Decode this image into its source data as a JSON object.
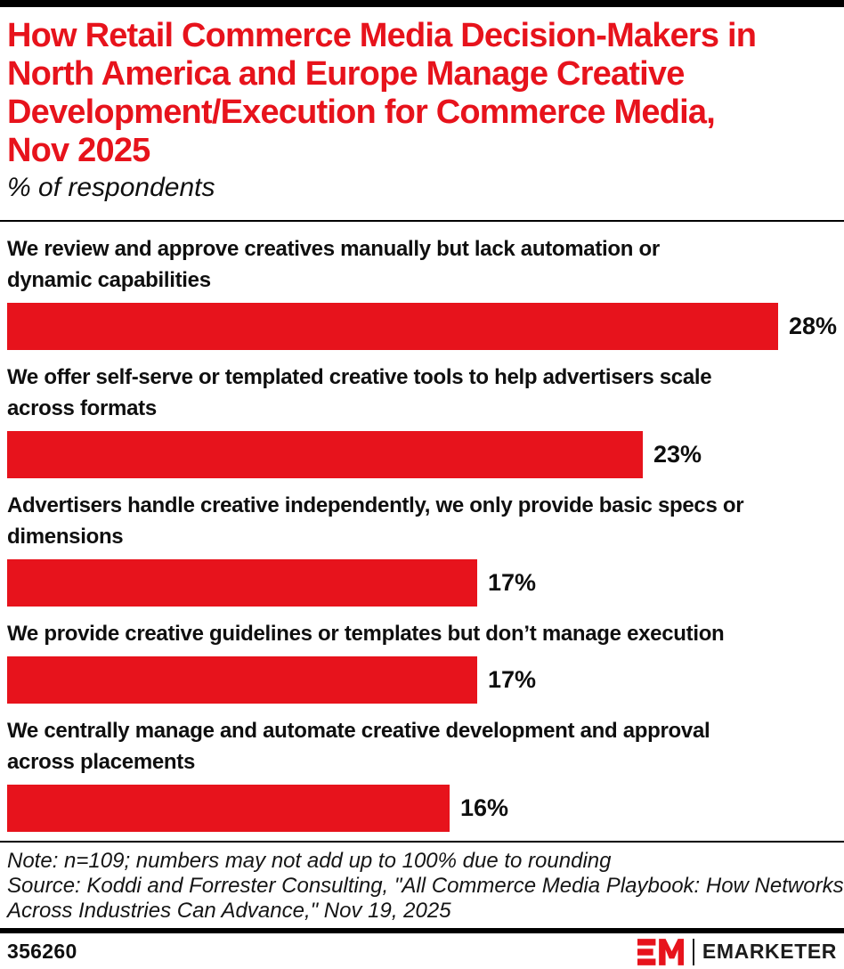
{
  "header": {
    "title_lines": [
      "How Retail Commerce Media Decision-Makers in",
      "North America and Europe Manage Creative",
      "Development/Execution for Commerce Media,",
      "Nov 2025"
    ],
    "subtitle": "% of respondents",
    "title_color": "#E7131C"
  },
  "chart_data": {
    "type": "bar",
    "orientation": "horizontal",
    "title": "How Retail Commerce Media Decision-Makers in North America and Europe Manage Creative Development/Execution for Commerce Media, Nov 2025",
    "subtitle": "% of respondents",
    "unit": "% of respondents",
    "xlim": [
      0,
      30
    ],
    "grid": false,
    "legend": "none",
    "bar_color": "#E7131C",
    "categories": [
      "We review and approve creatives manually but lack automation or dynamic capabilities",
      "We offer self-serve or templated creative tools to help advertisers scale across formats",
      "Advertisers handle creative independently, we only provide basic specs or dimensions",
      "We provide creative guidelines or templates but don’t manage execution",
      "We centrally manage and automate creative development and approval across placements"
    ],
    "category_lines": [
      [
        "We review and approve creatives manually but lack automation or",
        "dynamic capabilities"
      ],
      [
        "We offer self-serve or templated creative tools to help advertisers scale",
        "across formats"
      ],
      [
        "Advertisers handle creative independently, we only provide basic specs or",
        "dimensions"
      ],
      [
        "We provide creative guidelines or templates but don’t manage execution"
      ],
      [
        "We centrally manage and automate creative development and approval",
        "across placements"
      ]
    ],
    "values": [
      28,
      23,
      17,
      17,
      16
    ],
    "value_labels": [
      "28%",
      "23%",
      "17%",
      "17%",
      "16%"
    ]
  },
  "footer": {
    "note": "Note: n=109; numbers may not add up to 100% due to rounding",
    "source_lines": [
      "Source: Koddi and Forrester Consulting, \"All Commerce Media Playbook: How Networks",
      "Across Industries Can Advance,\" Nov 19, 2025"
    ],
    "chart_id": "356260",
    "brand_wordmark": "EMARKETER"
  }
}
